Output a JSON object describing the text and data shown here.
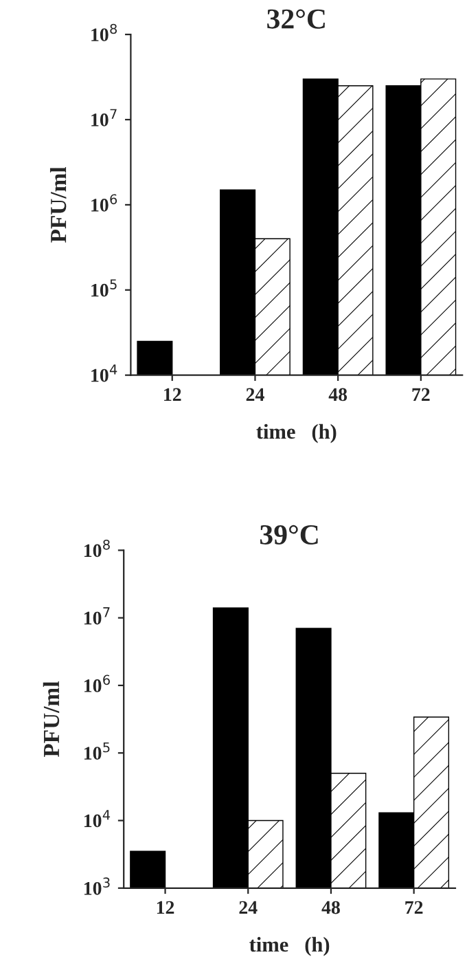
{
  "chart_data": [
    {
      "type": "bar",
      "title": "32°C",
      "xlabel": "time   (h)",
      "ylabel": "PFU/ml",
      "categories": [
        "12",
        "24",
        "48",
        "72"
      ],
      "series": [
        {
          "color": "#000000",
          "values": [
            25000,
            1500000,
            30000000,
            25000000
          ]
        },
        {
          "color": "#ffffff",
          "values": [
            null,
            400000,
            25000000,
            30000000
          ]
        }
      ],
      "log": true,
      "ylim": [
        10000,
        100000000
      ],
      "yticks": [
        {
          "value": 10000,
          "label": "10$^{4}$"
        },
        {
          "value": 100000,
          "label": "10$^{5}$"
        },
        {
          "value": 1000000,
          "label": "10$^{6}$"
        },
        {
          "value": 10000000,
          "label": "10$^{7}$"
        },
        {
          "value": 100000000,
          "label": "10$^{8}$"
        }
      ],
      "grid": false,
      "legend": false
    },
    {
      "type": "bar",
      "title": "39°C",
      "xlabel": "time   (h)",
      "ylabel": "PFU/ml",
      "categories": [
        "12",
        "24",
        "48",
        "72"
      ],
      "series": [
        {
          "color": "#000000",
          "values": [
            3500,
            14000000,
            7000000,
            13000
          ]
        },
        {
          "color": "#ffffff",
          "values": [
            null,
            10000,
            50000,
            340000
          ]
        }
      ],
      "log": true,
      "ylim": [
        1000,
        100000000
      ],
      "yticks": [
        {
          "value": 1000,
          "label": "10$^{3}$"
        },
        {
          "value": 10000,
          "label": "10$^{4}$"
        },
        {
          "value": 100000,
          "label": "10$^{5}$"
        },
        {
          "value": 1000000,
          "label": "10$^{6}$"
        },
        {
          "value": 10000000,
          "label": "10$^{7}$"
        },
        {
          "value": 100000000,
          "label": "10$^{8}$"
        }
      ],
      "grid": false,
      "legend": false
    }
  ]
}
